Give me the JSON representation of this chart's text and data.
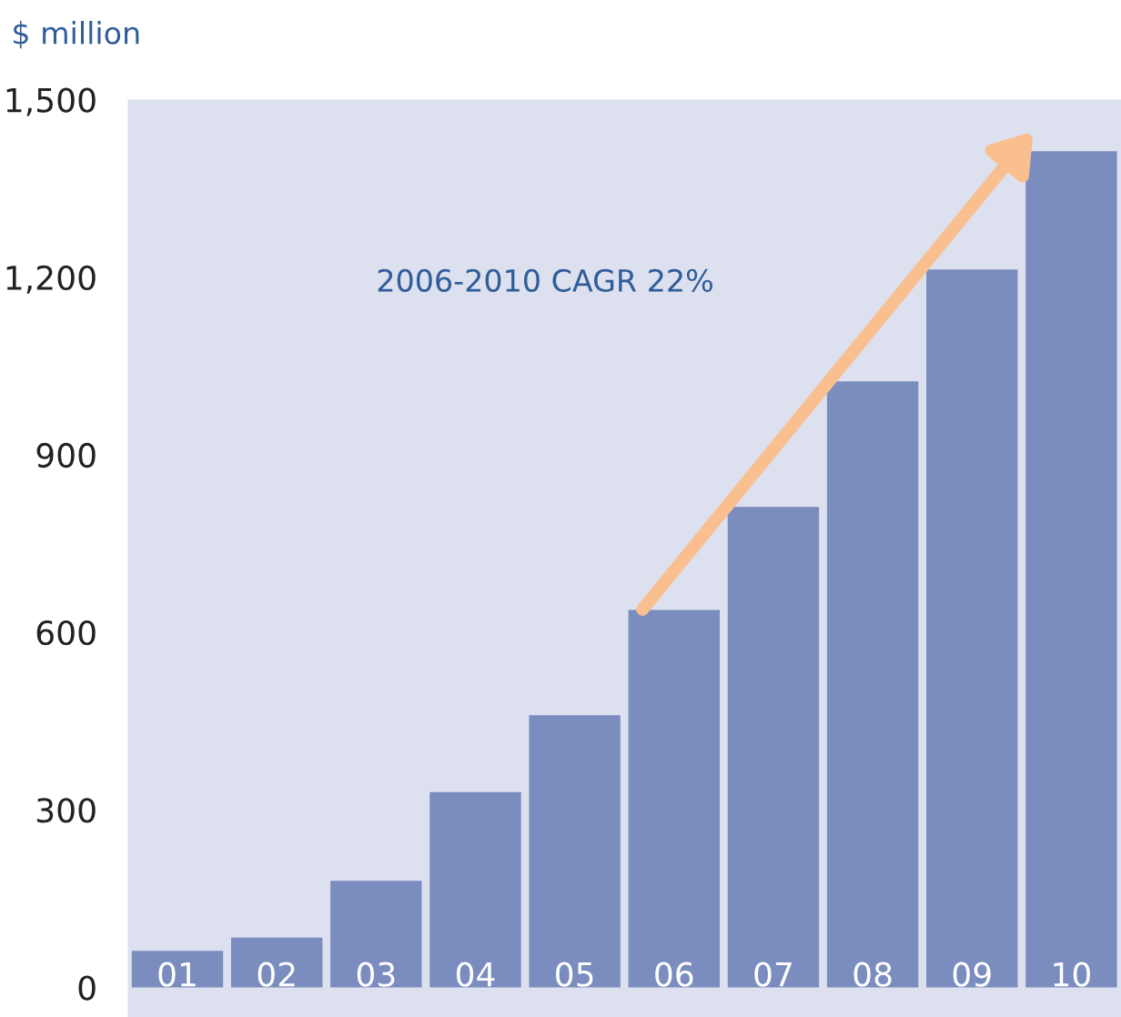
{
  "chart_data": {
    "type": "bar",
    "ylabel": "$ million",
    "categories": [
      "01",
      "02",
      "03",
      "04",
      "05",
      "06",
      "07",
      "08",
      "09",
      "10"
    ],
    "values": [
      62,
      84,
      180,
      330,
      460,
      638,
      812,
      1024,
      1213,
      1413
    ],
    "color": "#7b8dbf",
    "ylim": [
      -50,
      1500
    ],
    "yticks": [
      0,
      300,
      600,
      900,
      {
        "value": 1200,
        "label": "1,200"
      },
      {
        "value": 1500,
        "label": "1,500"
      }
    ],
    "annotations": [
      "2006-2010 CAGR 22%"
    ],
    "grid": false,
    "legend": false
  }
}
